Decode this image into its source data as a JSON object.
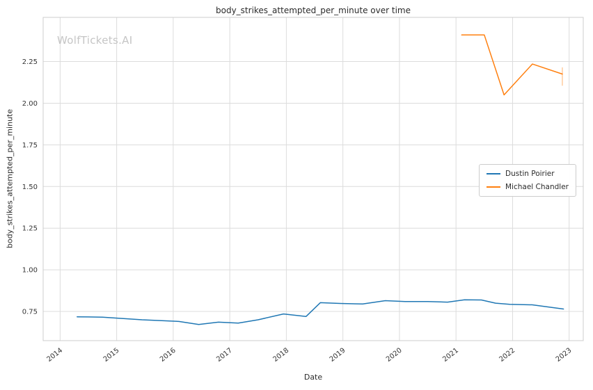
{
  "chart_data": {
    "type": "line",
    "title": "body_strikes_attempted_per_minute over time",
    "xlabel": "Date",
    "ylabel": "body_strikes_attempted_per_minute",
    "watermark": "WolfTickets.AI",
    "grid": true,
    "xlim": [
      2013.7,
      2023.25
    ],
    "ylim": [
      0.575,
      2.515
    ],
    "xticks": [
      2014,
      2015,
      2016,
      2017,
      2018,
      2019,
      2020,
      2021,
      2022,
      2023
    ],
    "yticks": [
      0.75,
      1.0,
      1.25,
      1.5,
      1.75,
      2.0,
      2.25
    ],
    "legend": {
      "position": "center right",
      "entries": [
        "Dustin Poirier",
        "Michael Chandler"
      ]
    },
    "style": {
      "grid_color": "#dcdcdc",
      "spine_color": "#cccccc",
      "tick_color": "#333333"
    },
    "series": [
      {
        "name": "Dustin Poirier",
        "color": "#1f77b4",
        "x": [
          2014.3,
          2014.75,
          2015.1,
          2015.45,
          2015.8,
          2016.1,
          2016.45,
          2016.8,
          2017.15,
          2017.5,
          2017.95,
          2018.35,
          2018.6,
          2018.95,
          2019.35,
          2019.75,
          2020.1,
          2020.5,
          2020.85,
          2021.15,
          2021.45,
          2021.7,
          2021.95,
          2022.35,
          2022.9
        ],
        "y": [
          0.718,
          0.716,
          0.708,
          0.7,
          0.695,
          0.69,
          0.672,
          0.686,
          0.68,
          0.7,
          0.735,
          0.72,
          0.803,
          0.798,
          0.795,
          0.815,
          0.81,
          0.81,
          0.806,
          0.82,
          0.819,
          0.8,
          0.793,
          0.79,
          0.765
        ]
      },
      {
        "name": "Michael Chandler",
        "color": "#ff7f0e",
        "x": [
          2021.1,
          2021.5,
          2021.85,
          2022.35,
          2022.88
        ],
        "y": [
          2.41,
          2.41,
          2.05,
          2.235,
          2.175
        ],
        "error_bar": {
          "x": 2022.88,
          "y_low": 2.105,
          "y_high": 2.215,
          "color": "rgba(255,127,14,0.4)"
        }
      }
    ]
  }
}
